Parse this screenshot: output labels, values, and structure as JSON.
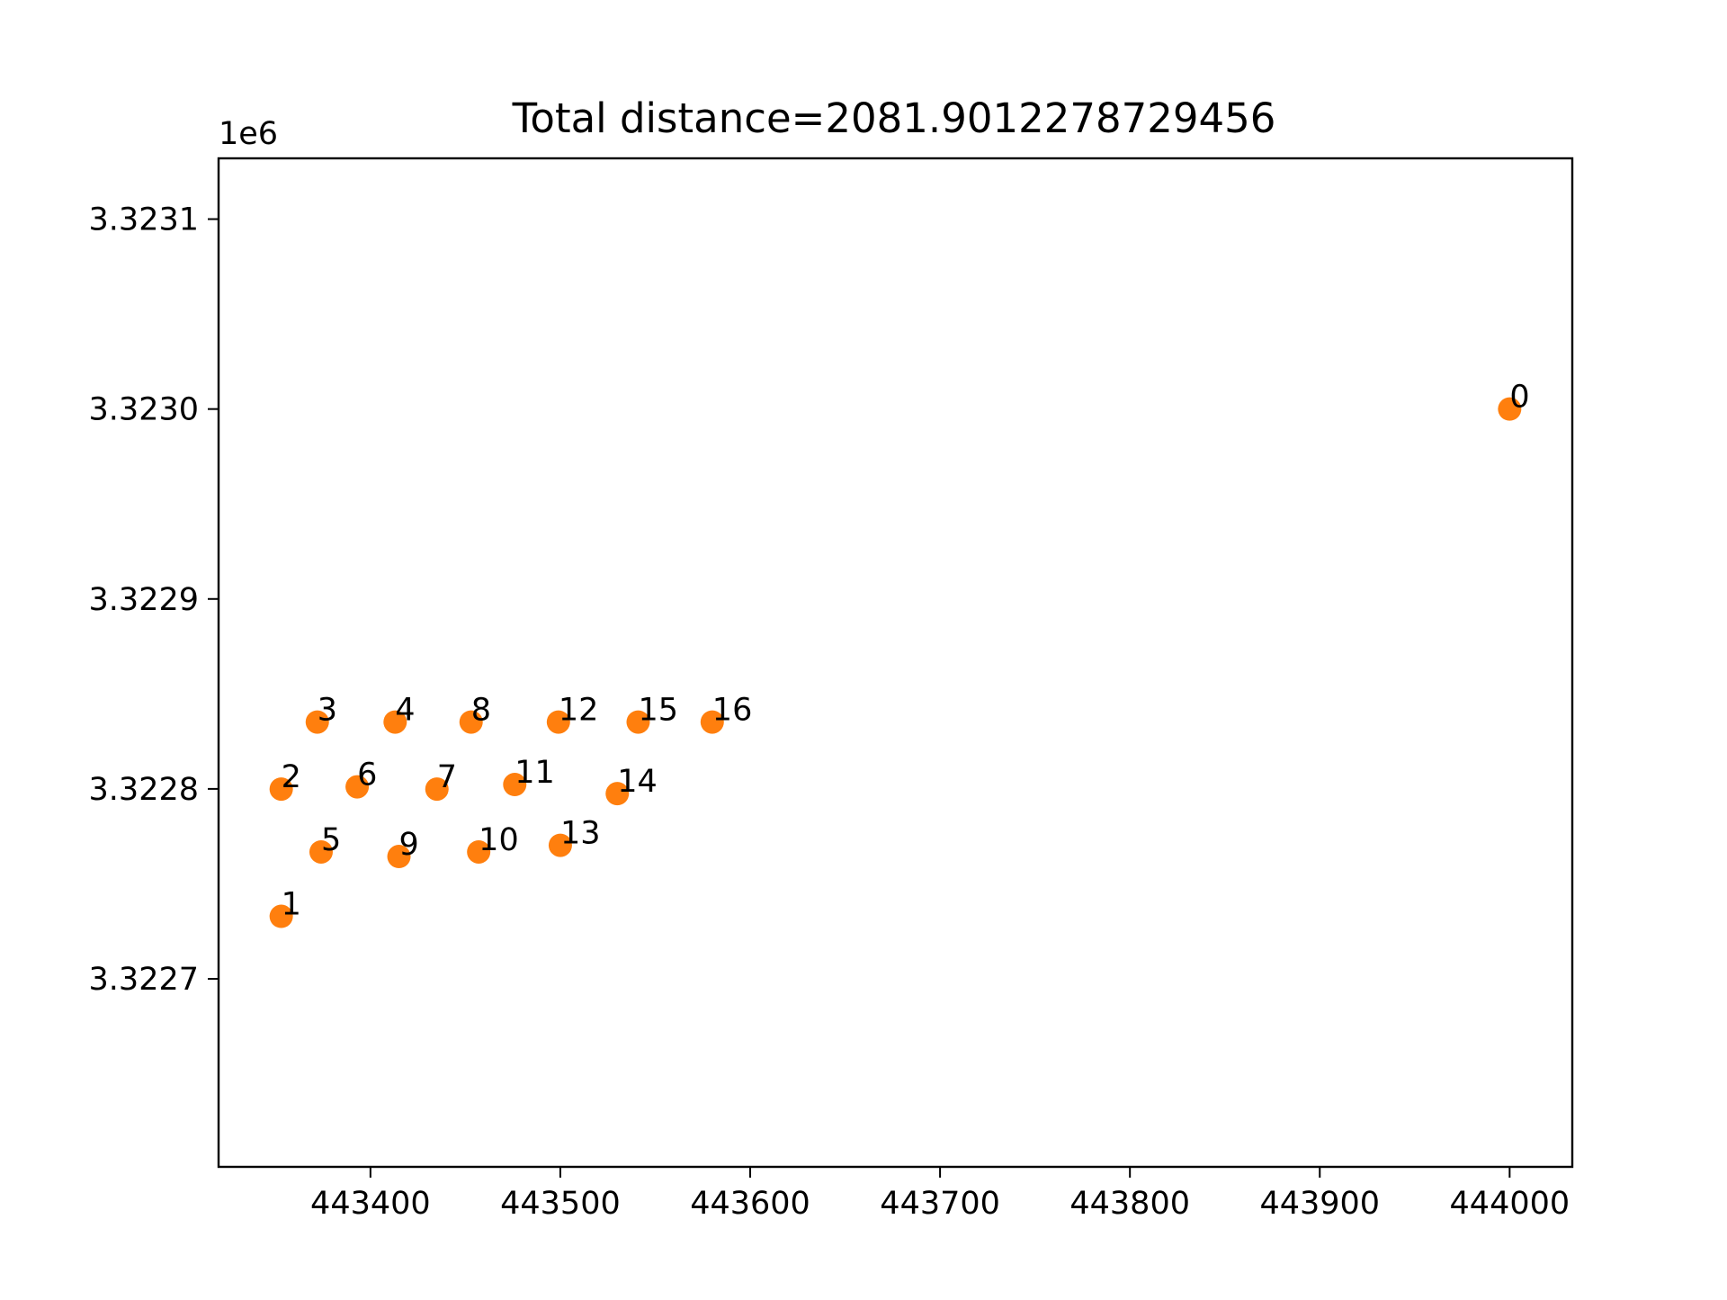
{
  "chart_data": {
    "type": "scatter",
    "title": "Total distance=2081.9012278729456",
    "xlabel": "",
    "ylabel": "",
    "y_offset_label": "1e6",
    "xlim": [
      443320,
      444033
    ],
    "ylim": [
      3.322601,
      3.323132
    ],
    "x_ticks": [
      443400,
      443500,
      443600,
      443700,
      443800,
      443900,
      444000
    ],
    "x_tick_labels": [
      "443400",
      "443500",
      "443600",
      "443700",
      "443800",
      "443900",
      "444000"
    ],
    "y_ticks": [
      3.3227,
      3.3228,
      3.3229,
      3.323,
      3.3231
    ],
    "y_tick_labels": [
      "3.3227",
      "3.3228",
      "3.3229",
      "3.3230",
      "3.3231"
    ],
    "grid": false,
    "marker_color": "#ff7f0e",
    "points": [
      {
        "label": "0",
        "x": 444000,
        "y": 3.323
      },
      {
        "label": "1",
        "x": 443353,
        "y": 3.3227329
      },
      {
        "label": "2",
        "x": 443353,
        "y": 3.3227999
      },
      {
        "label": "3",
        "x": 443372,
        "y": 3.3228352
      },
      {
        "label": "4",
        "x": 443413,
        "y": 3.3228352
      },
      {
        "label": "5",
        "x": 443374,
        "y": 3.3227668
      },
      {
        "label": "6",
        "x": 443393,
        "y": 3.3228011
      },
      {
        "label": "7",
        "x": 443435,
        "y": 3.3227999
      },
      {
        "label": "8",
        "x": 443453,
        "y": 3.3228352
      },
      {
        "label": "9",
        "x": 443415,
        "y": 3.3227644
      },
      {
        "label": "10",
        "x": 443457,
        "y": 3.3227668
      },
      {
        "label": "11",
        "x": 443476,
        "y": 3.3228023
      },
      {
        "label": "12",
        "x": 443499,
        "y": 3.3228352
      },
      {
        "label": "13",
        "x": 443500,
        "y": 3.3227703
      },
      {
        "label": "14",
        "x": 443530,
        "y": 3.3227975
      },
      {
        "label": "15",
        "x": 443541,
        "y": 3.3228352
      },
      {
        "label": "16",
        "x": 443580,
        "y": 3.3228352
      }
    ]
  }
}
